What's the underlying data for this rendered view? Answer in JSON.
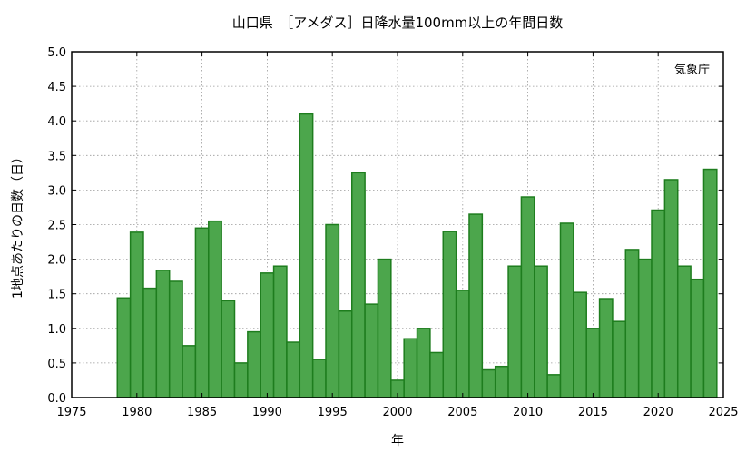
{
  "chart_data": {
    "type": "bar",
    "title": "山口県　［アメダス］日降水量100mm以上の年間日数",
    "xlabel": "年",
    "ylabel": "1地点あたりの日数（日）",
    "source": "気象庁",
    "xlim": [
      1975,
      2025
    ],
    "ylim": [
      0,
      5
    ],
    "xticks": [
      1975,
      1980,
      1985,
      1990,
      1995,
      2000,
      2005,
      2010,
      2015,
      2020,
      2025
    ],
    "yticks": [
      0,
      0.5,
      1,
      1.5,
      2,
      2.5,
      3,
      3.5,
      4,
      4.5,
      5
    ],
    "xtick_labels": [
      "1975",
      "1980",
      "1985",
      "1990",
      "1995",
      "2000",
      "2005",
      "2010",
      "2015",
      "2020",
      "2025"
    ],
    "ytick_labels": [
      "0.0",
      "0.5",
      "1.0",
      "1.5",
      "2.0",
      "2.5",
      "3.0",
      "3.5",
      "4.0",
      "4.5",
      "5.0"
    ],
    "grid": true,
    "x": [
      1979,
      1980,
      1981,
      1982,
      1983,
      1984,
      1985,
      1986,
      1987,
      1988,
      1989,
      1990,
      1991,
      1992,
      1993,
      1994,
      1995,
      1996,
      1997,
      1998,
      1999,
      2000,
      2001,
      2002,
      2003,
      2004,
      2005,
      2006,
      2007,
      2008,
      2009,
      2010,
      2011,
      2012,
      2013,
      2014,
      2015,
      2016,
      2017,
      2018,
      2019,
      2020,
      2021,
      2022,
      2023,
      2024
    ],
    "values": [
      1.44,
      2.39,
      1.58,
      1.84,
      1.68,
      0.75,
      2.45,
      2.55,
      1.4,
      0.5,
      0.95,
      1.8,
      1.9,
      0.8,
      4.1,
      0.55,
      2.5,
      1.25,
      3.25,
      1.35,
      2.0,
      0.25,
      0.85,
      1.0,
      0.65,
      2.4,
      1.55,
      2.65,
      0.4,
      0.45,
      1.9,
      2.9,
      1.9,
      0.33,
      2.52,
      1.52,
      1.0,
      1.43,
      1.1,
      2.14,
      2.0,
      2.71,
      3.15,
      1.9,
      1.71,
      3.3
    ]
  }
}
